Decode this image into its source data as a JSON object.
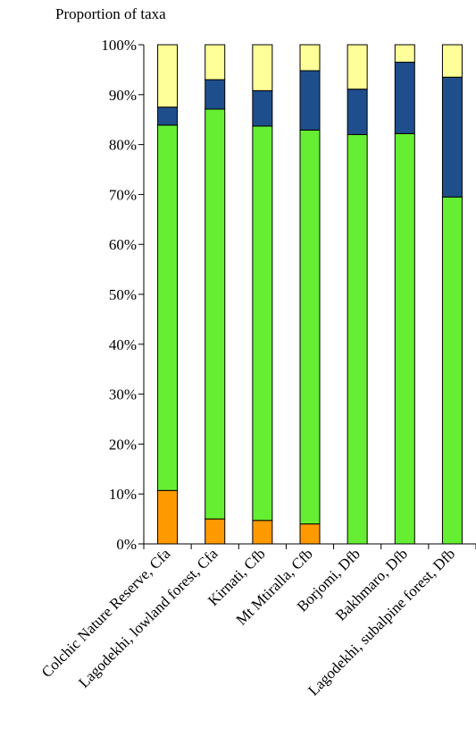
{
  "chart_data": {
    "type": "bar",
    "stacked": true,
    "percent": true,
    "title": "",
    "xlabel": "",
    "ylabel": "Proportion of taxa",
    "ylim": [
      0,
      100
    ],
    "yticks": [
      "0%",
      "10%",
      "20%",
      "30%",
      "40%",
      "50%",
      "60%",
      "70%",
      "80%",
      "90%",
      "100%"
    ],
    "grid": false,
    "legend": "none",
    "categories": [
      "Colchic Nature Reserve, Cfa",
      "Lagodekhi, lowland forest, Cfa",
      "Kirnati, Cfb",
      "Mt Mtiralla, Cfb",
      "Borjomi, Dfb",
      "Bakhmaro, Dfb",
      "Lagodekhi, subalpine forest, Dfb"
    ],
    "series": [
      {
        "color": "#FF9900",
        "values": [
          10.7,
          5.0,
          4.7,
          4.0,
          0,
          0,
          0
        ]
      },
      {
        "color": "#66EE33",
        "values": [
          73.2,
          82.1,
          79.0,
          78.9,
          82.0,
          82.2,
          69.5
        ]
      },
      {
        "color": "#1F4E8C",
        "values": [
          3.6,
          5.9,
          7.1,
          11.9,
          9.1,
          14.3,
          24.0
        ]
      },
      {
        "color": "#FFFF99",
        "values": [
          12.5,
          7.0,
          9.2,
          5.2,
          8.9,
          3.5,
          6.5
        ]
      }
    ]
  }
}
